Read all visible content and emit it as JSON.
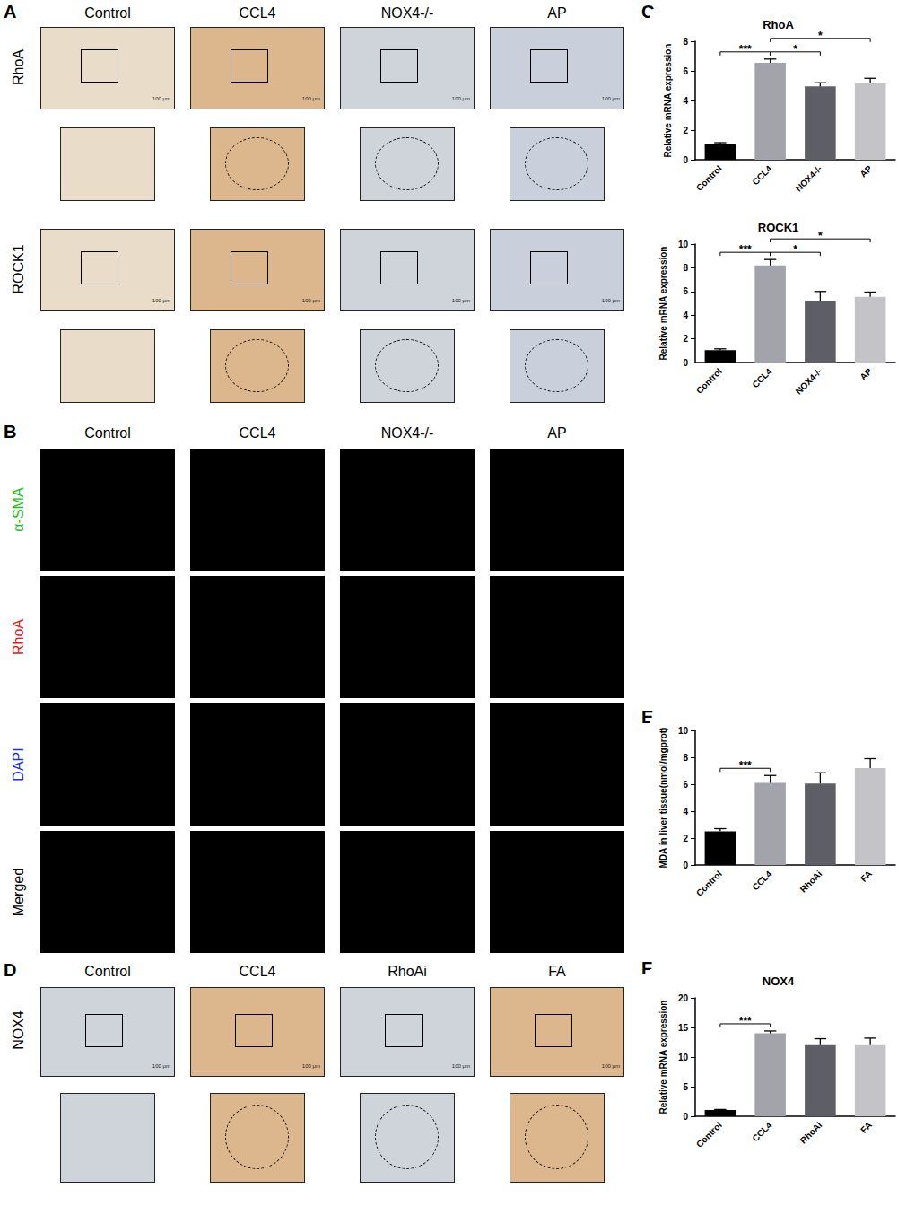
{
  "panel_A": {
    "letter": "A",
    "columns": [
      "Control",
      "CCL4",
      "NOX4-/-",
      "AP"
    ],
    "rows": [
      "RhoA",
      "ROCK1"
    ],
    "scale_bar": "100 μm"
  },
  "panel_B": {
    "letter": "B",
    "columns": [
      "Control",
      "CCL4",
      "NOX4-/-",
      "AP"
    ],
    "rows": [
      {
        "label": "α-SMA",
        "color": "#1fbf1f"
      },
      {
        "label": "RhoA",
        "color": "#e21b1b"
      },
      {
        "label": "DAPI",
        "color": "#2233cc"
      },
      {
        "label": "Merged",
        "color": "#000000"
      }
    ]
  },
  "panel_D": {
    "letter": "D",
    "columns": [
      "Control",
      "CCL4",
      "RhoAi",
      "FA"
    ],
    "rows": [
      "NOX4"
    ],
    "scale_bar": "100 μm"
  },
  "chart_data": [
    {
      "panel": "C",
      "type": "bar",
      "title": "RhoA",
      "y_label": "Relative mRNA expression",
      "categories": [
        "Control",
        "CCL4",
        "NOX4-/-",
        "AP"
      ],
      "values": [
        1.05,
        6.55,
        4.95,
        5.15
      ],
      "errors": [
        0.1,
        0.25,
        0.25,
        0.35
      ],
      "colors": [
        "#000000",
        "#a3a3ab",
        "#5e5e66",
        "#c4c4c8"
      ],
      "ylim": [
        0,
        8
      ],
      "yticks": [
        0,
        2,
        4,
        6,
        8
      ],
      "grid": false,
      "significance": [
        {
          "from": 0,
          "to": 1,
          "label": "***"
        },
        {
          "from": 1,
          "to": 2,
          "label": "*"
        },
        {
          "from": 1,
          "to": 3,
          "label": "*"
        }
      ]
    },
    {
      "type": "bar",
      "title": "ROCK1",
      "y_label": "Relative mRNA expression",
      "categories": [
        "Control",
        "CCL4",
        "NOX4-/-",
        "AP"
      ],
      "values": [
        1.05,
        8.2,
        5.2,
        5.55
      ],
      "errors": [
        0.1,
        0.5,
        0.8,
        0.4
      ],
      "colors": [
        "#000000",
        "#a3a3ab",
        "#5e5e66",
        "#c4c4c8"
      ],
      "ylim": [
        0,
        10
      ],
      "yticks": [
        0,
        2,
        4,
        6,
        8,
        10
      ],
      "grid": false,
      "significance": [
        {
          "from": 0,
          "to": 1,
          "label": "***"
        },
        {
          "from": 1,
          "to": 2,
          "label": "*"
        },
        {
          "from": 1,
          "to": 3,
          "label": "*"
        }
      ]
    },
    {
      "panel": "E",
      "type": "bar",
      "y_label": "MDA in liver tissue(nmol/mgprot)",
      "categories": [
        "Control",
        "CCL4",
        "RhoAi",
        "FA"
      ],
      "values": [
        2.5,
        6.1,
        6.05,
        7.2
      ],
      "errors": [
        0.2,
        0.55,
        0.8,
        0.7
      ],
      "colors": [
        "#000000",
        "#a3a3ab",
        "#5e5e66",
        "#c4c4c8"
      ],
      "ylim": [
        0,
        10
      ],
      "yticks": [
        0,
        2,
        4,
        6,
        8,
        10
      ],
      "grid": false,
      "significance": [
        {
          "from": 0,
          "to": 1,
          "label": "***"
        }
      ]
    },
    {
      "panel": "F",
      "type": "bar",
      "title": "NOX4",
      "y_label": "Relative mRNA expression",
      "categories": [
        "Control",
        "CCL4",
        "RhoAi",
        "FA"
      ],
      "values": [
        1.05,
        14.0,
        12.0,
        12.0
      ],
      "errors": [
        0.1,
        0.4,
        1.1,
        1.2
      ],
      "colors": [
        "#000000",
        "#a3a3ab",
        "#5e5e66",
        "#c4c4c8"
      ],
      "ylim": [
        0,
        20
      ],
      "yticks": [
        0,
        5,
        10,
        15,
        20
      ],
      "grid": false,
      "significance": [
        {
          "from": 0,
          "to": 1,
          "label": "***"
        }
      ]
    }
  ]
}
